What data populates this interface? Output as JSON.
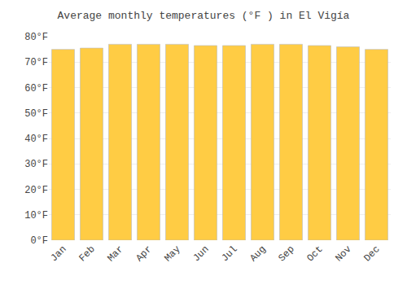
{
  "chart_data": {
    "type": "bar",
    "title": "Average monthly temperatures (°F ) in El Vigía",
    "categories": [
      "Jan",
      "Feb",
      "Mar",
      "Apr",
      "May",
      "Jun",
      "Jul",
      "Aug",
      "Sep",
      "Oct",
      "Nov",
      "Dec"
    ],
    "values": [
      75.0,
      75.5,
      77.0,
      77.0,
      77.0,
      76.5,
      76.5,
      77.0,
      77.0,
      76.5,
      76.0,
      75.0
    ],
    "color": "#FFCC44",
    "ylim": [
      0,
      80
    ],
    "yticks": [
      {
        "value": 0,
        "label": "0°F"
      },
      {
        "value": 10,
        "label": "10°F"
      },
      {
        "value": 20,
        "label": "20°F"
      },
      {
        "value": 30,
        "label": "30°F"
      },
      {
        "value": 40,
        "label": "40°F"
      },
      {
        "value": 50,
        "label": "50°F"
      },
      {
        "value": 60,
        "label": "60°F"
      },
      {
        "value": 70,
        "label": "70°F"
      },
      {
        "value": 80,
        "label": "80°F"
      }
    ],
    "grid": true
  }
}
